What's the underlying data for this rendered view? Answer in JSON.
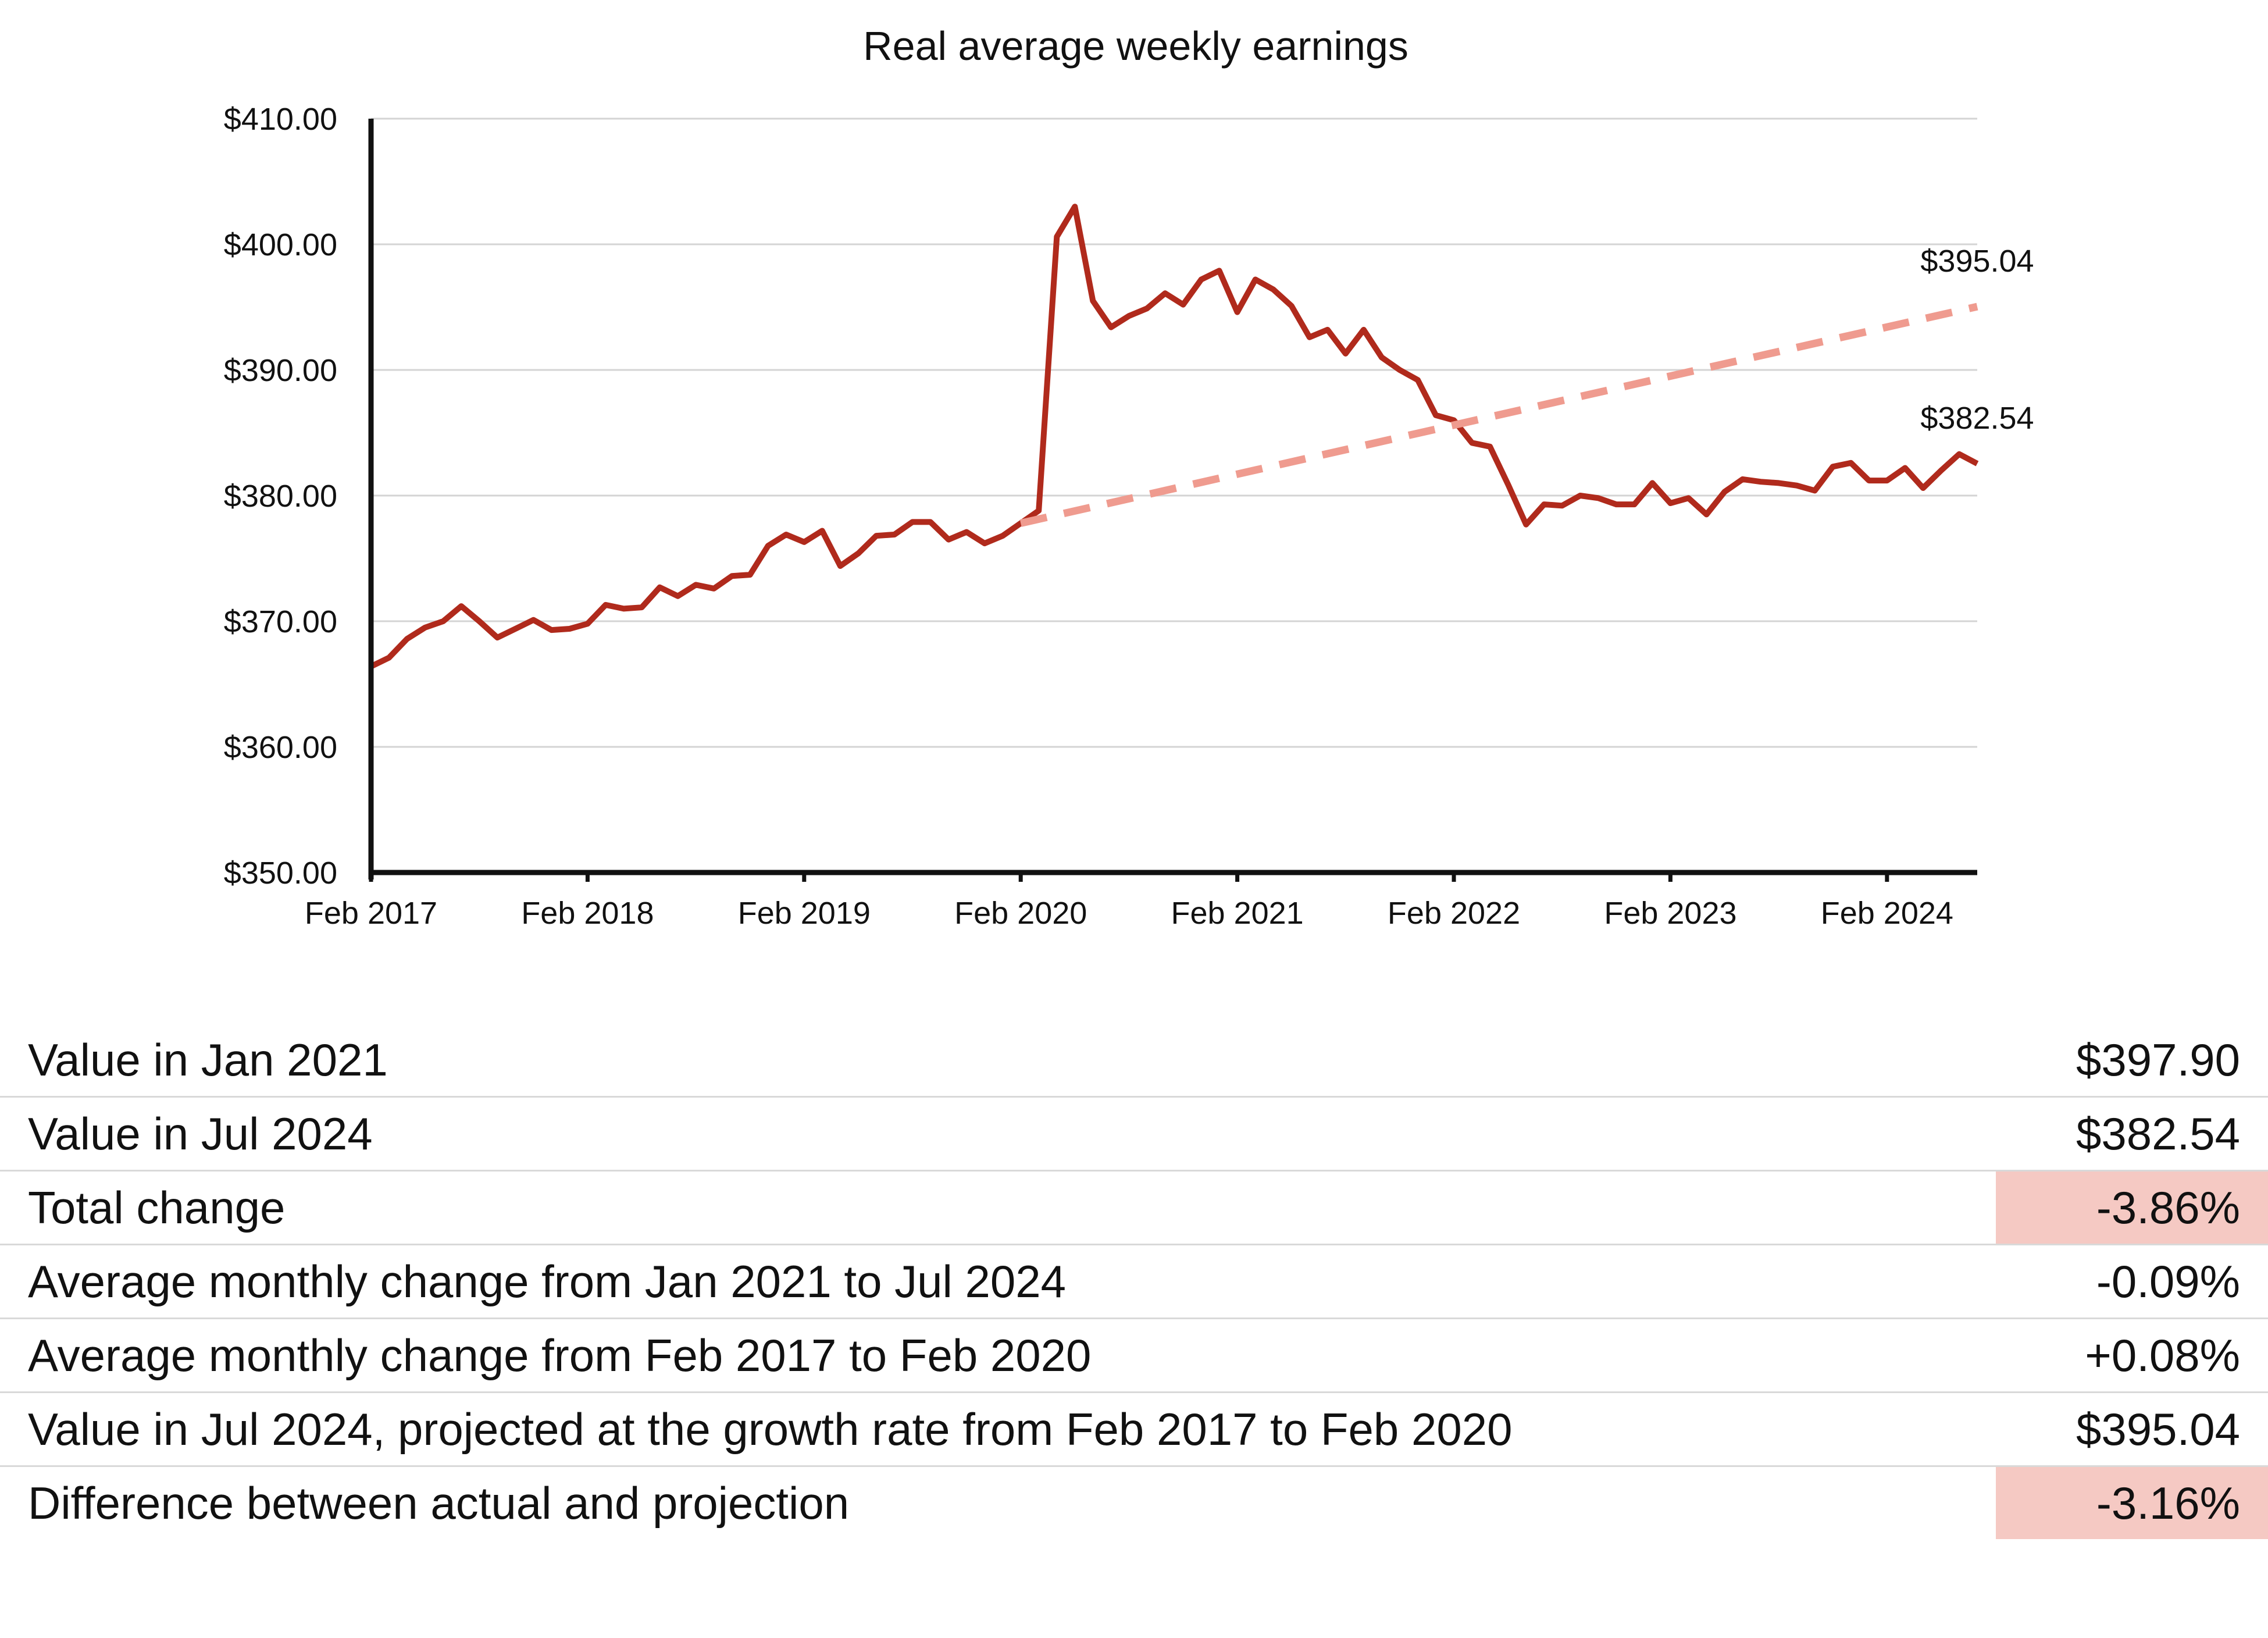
{
  "chart_data": {
    "type": "line",
    "title": "Real average weekly earnings",
    "ylim": [
      350,
      410
    ],
    "yticks": [
      "$350.00",
      "$360.00",
      "$370.00",
      "$380.00",
      "$390.00",
      "$400.00",
      "$410.00"
    ],
    "ytick_values": [
      350,
      360,
      370,
      380,
      390,
      400,
      410
    ],
    "xticks": [
      "Feb 2017",
      "Feb 2018",
      "Feb 2019",
      "Feb 2020",
      "Feb 2021",
      "Feb 2022",
      "Feb 2023",
      "Feb 2024"
    ],
    "xtick_dates": [
      "2017-02",
      "2018-02",
      "2019-02",
      "2020-02",
      "2021-02",
      "2022-02",
      "2023-02",
      "2024-02"
    ],
    "xlim": [
      "2017-02",
      "2024-07"
    ],
    "grid": true,
    "series": [
      {
        "kind": "actual",
        "color": "#b02a1c",
        "x": [
          "2017-02",
          "2017-03",
          "2017-04",
          "2017-05",
          "2017-06",
          "2017-07",
          "2017-08",
          "2017-09",
          "2017-10",
          "2017-11",
          "2017-12",
          "2018-01",
          "2018-02",
          "2018-03",
          "2018-04",
          "2018-05",
          "2018-06",
          "2018-07",
          "2018-08",
          "2018-09",
          "2018-10",
          "2018-11",
          "2018-12",
          "2019-01",
          "2019-02",
          "2019-03",
          "2019-04",
          "2019-05",
          "2019-06",
          "2019-07",
          "2019-08",
          "2019-09",
          "2019-10",
          "2019-11",
          "2019-12",
          "2020-01",
          "2020-02",
          "2020-03",
          "2020-04",
          "2020-05",
          "2020-06",
          "2020-07",
          "2020-08",
          "2020-09",
          "2020-10",
          "2020-11",
          "2020-12",
          "2021-01",
          "2021-02",
          "2021-03",
          "2021-04",
          "2021-05",
          "2021-06",
          "2021-07",
          "2021-08",
          "2021-09",
          "2021-10",
          "2021-11",
          "2021-12",
          "2022-01",
          "2022-02",
          "2022-03",
          "2022-04",
          "2022-05",
          "2022-06",
          "2022-07",
          "2022-08",
          "2022-09",
          "2022-10",
          "2022-11",
          "2022-12",
          "2023-01",
          "2023-02",
          "2023-03",
          "2023-04",
          "2023-05",
          "2023-06",
          "2023-07",
          "2023-08",
          "2023-09",
          "2023-10",
          "2023-11",
          "2023-12",
          "2024-01",
          "2024-02",
          "2024-03",
          "2024-04",
          "2024-05",
          "2024-06",
          "2024-07"
        ],
        "y": [
          366.4,
          367.1,
          368.6,
          369.5,
          370.0,
          371.2,
          370.0,
          368.7,
          369.4,
          370.1,
          369.3,
          369.4,
          369.8,
          371.3,
          371.0,
          371.1,
          372.7,
          372.0,
          372.9,
          372.6,
          373.6,
          373.7,
          376.0,
          376.9,
          376.3,
          377.2,
          374.4,
          375.4,
          376.8,
          376.9,
          377.9,
          377.9,
          376.5,
          377.1,
          376.2,
          376.8,
          377.8,
          378.8,
          400.6,
          403.0,
          395.5,
          393.4,
          394.3,
          394.9,
          396.1,
          395.2,
          397.2,
          397.9,
          394.6,
          397.2,
          396.4,
          395.1,
          392.6,
          393.2,
          391.3,
          393.2,
          391.0,
          390.0,
          389.2,
          386.4,
          386.0,
          384.2,
          383.9,
          380.9,
          377.7,
          379.3,
          379.2,
          380.0,
          379.8,
          379.3,
          379.3,
          381.0,
          379.4,
          379.8,
          378.5,
          380.3,
          381.3,
          381.1,
          381.0,
          380.8,
          380.4,
          382.3,
          382.6,
          381.2,
          381.2,
          382.2,
          380.6,
          382.0,
          383.3,
          382.54
        ]
      },
      {
        "kind": "projection",
        "color": "#ef9b8f",
        "x": [
          "2020-02",
          "2024-07"
        ],
        "y": [
          377.8,
          395.04
        ]
      }
    ],
    "annotations": [
      {
        "text": "$395.04",
        "x": "2024-07",
        "y": 395.04
      },
      {
        "text": "$382.54",
        "x": "2024-07",
        "y": 382.54
      }
    ]
  },
  "stats": [
    {
      "label": "Value in Jan 2021",
      "value": "$397.90",
      "highlight": false
    },
    {
      "label": "Value in Jul 2024",
      "value": "$382.54",
      "highlight": false
    },
    {
      "label": "Total change",
      "value": "-3.86%",
      "highlight": true
    },
    {
      "label": "Average monthly change from Jan 2021 to Jul 2024",
      "value": "-0.09%",
      "highlight": false
    },
    {
      "label": "Average monthly change from Feb 2017 to Feb 2020",
      "value": "+0.08%",
      "highlight": false
    },
    {
      "label": "Value in Jul 2024, projected at the growth rate from Feb 2017 to Feb 2020",
      "value": "$395.04",
      "highlight": false
    },
    {
      "label": "Difference between actual and projection",
      "value": "-3.16%",
      "highlight": true
    }
  ]
}
